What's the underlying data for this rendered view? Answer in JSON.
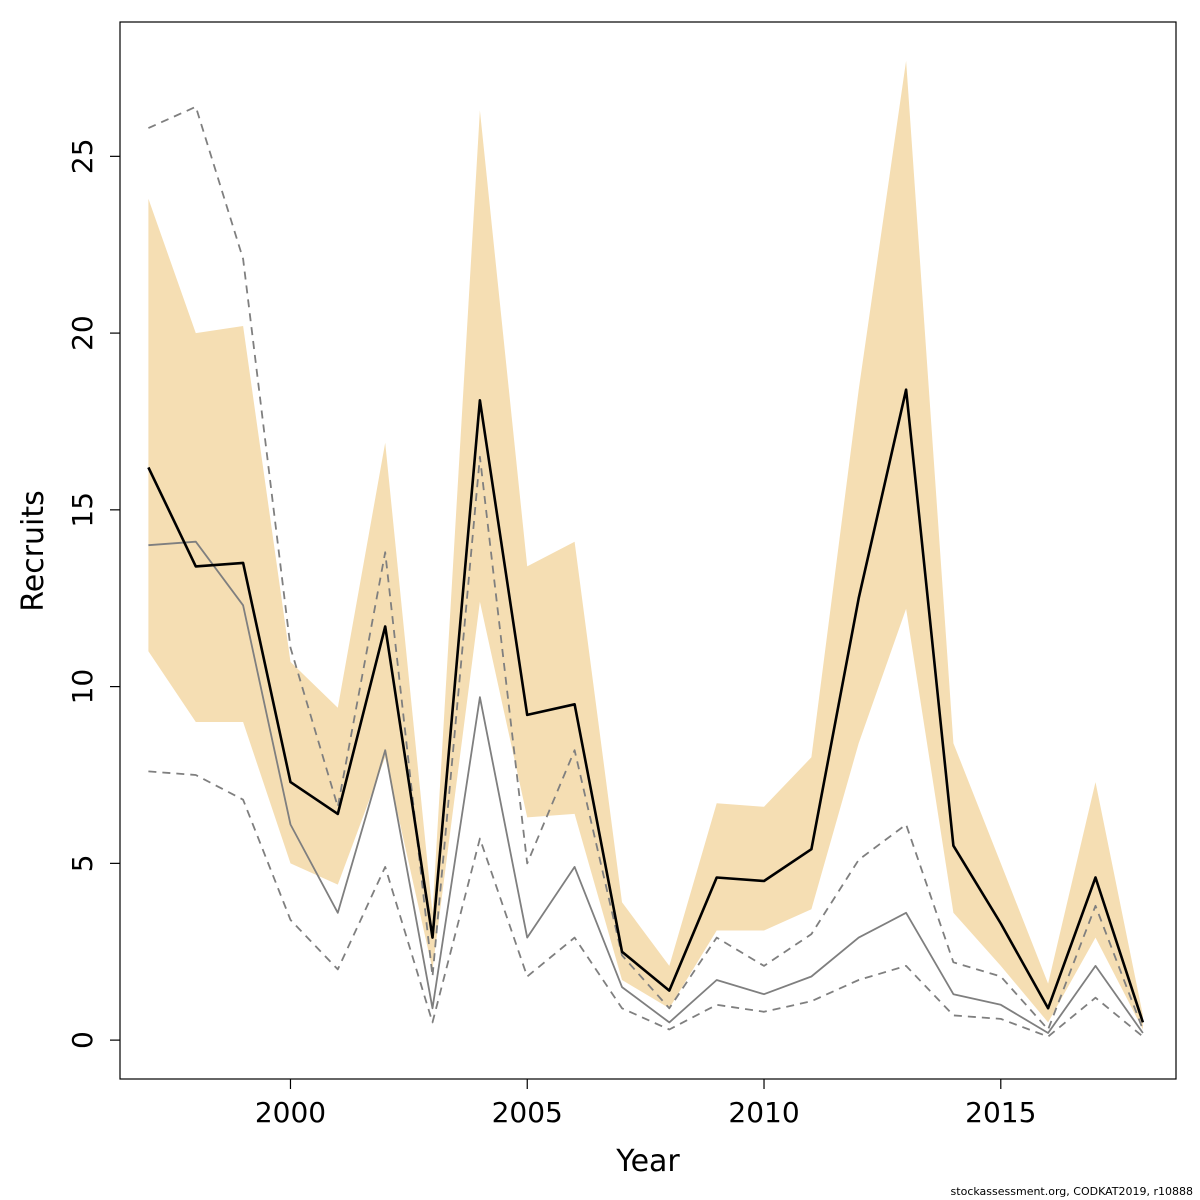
{
  "chart_data": {
    "type": "line",
    "xlabel": "Year",
    "ylabel": "Recruits",
    "xlim": [
      1996.4,
      2018.7
    ],
    "ylim": [
      -1.1,
      28.8
    ],
    "xticks": [
      2000,
      2005,
      2010,
      2015
    ],
    "yticks": [
      0,
      5,
      10,
      15,
      20,
      25
    ],
    "grid": false,
    "legend": "none",
    "x": [
      1997,
      1998,
      1999,
      2000,
      2001,
      2002,
      2003,
      2004,
      2005,
      2006,
      2007,
      2008,
      2009,
      2010,
      2011,
      2012,
      2013,
      2014,
      2015,
      2016,
      2017,
      2018
    ],
    "band": {
      "color": "#f5deb3",
      "lower": [
        11.0,
        9.0,
        9.0,
        5.0,
        4.4,
        8.0,
        2.0,
        12.4,
        6.3,
        6.4,
        1.7,
        0.9,
        3.1,
        3.1,
        3.7,
        8.4,
        12.2,
        3.6,
        2.1,
        0.5,
        2.9,
        0.3
      ],
      "upper": [
        23.8,
        20.0,
        20.2,
        10.7,
        9.4,
        16.9,
        3.6,
        26.3,
        13.4,
        14.1,
        3.9,
        2.1,
        6.7,
        6.6,
        8.0,
        18.4,
        27.7,
        8.4,
        5.0,
        1.6,
        7.3,
        0.7
      ]
    },
    "series": [
      {
        "color": "#7f7f7f",
        "style": "dashed",
        "width": 1.8,
        "values": [
          25.8,
          26.4,
          22.1,
          11.1,
          6.6,
          13.8,
          1.8,
          16.5,
          5.0,
          8.2,
          2.4,
          0.9,
          2.9,
          2.1,
          3.0,
          5.1,
          6.1,
          2.2,
          1.8,
          0.3,
          3.8,
          0.3
        ]
      },
      {
        "color": "#7f7f7f",
        "style": "dashed",
        "width": 1.8,
        "values": [
          7.6,
          7.5,
          6.8,
          3.4,
          2.0,
          4.9,
          0.5,
          5.7,
          1.8,
          2.9,
          0.9,
          0.3,
          1.0,
          0.8,
          1.1,
          1.7,
          2.1,
          0.7,
          0.6,
          0.1,
          1.2,
          0.1
        ]
      },
      {
        "color": "#7f7f7f",
        "style": "solid",
        "width": 1.8,
        "values": [
          14.0,
          14.1,
          12.3,
          6.1,
          3.6,
          8.2,
          0.9,
          9.7,
          2.9,
          4.9,
          1.5,
          0.5,
          1.7,
          1.3,
          1.8,
          2.9,
          3.6,
          1.3,
          1.0,
          0.2,
          2.1,
          0.2
        ]
      },
      {
        "color": "#000000",
        "style": "solid",
        "width": 2.6,
        "values": [
          16.2,
          13.4,
          13.5,
          7.3,
          6.4,
          11.7,
          2.9,
          18.1,
          9.2,
          9.5,
          2.5,
          1.4,
          4.6,
          4.5,
          5.4,
          12.5,
          18.4,
          5.5,
          3.3,
          0.9,
          4.6,
          0.5
        ]
      }
    ]
  },
  "footer": "stockassessment.org, CODKAT2019, r10888"
}
